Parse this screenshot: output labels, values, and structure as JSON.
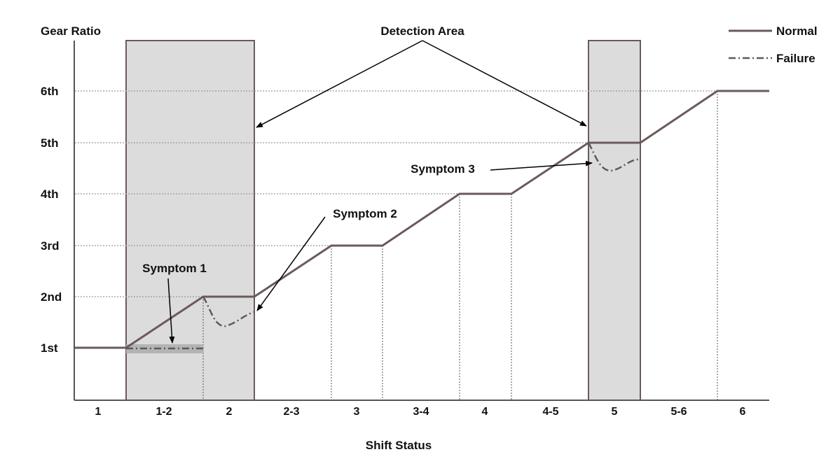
{
  "diagram": {
    "y_axis_title": "Gear Ratio",
    "x_axis_title": "Shift Status",
    "gear_levels": [
      "1st",
      "2nd",
      "3rd",
      "4th",
      "5th",
      "6th"
    ],
    "shift_statuses": [
      "1",
      "1-2",
      "2",
      "2-3",
      "3",
      "3-4",
      "4",
      "4-5",
      "5",
      "5-6",
      "6"
    ],
    "detection_area_label": "Detection Area",
    "symptom_1_label": "Symptom 1",
    "symptom_2_label": "Symptom 2",
    "symptom_3_label": "Symptom 3",
    "legend": {
      "normal_label": "Normal",
      "failure_label": "Failure"
    },
    "colors": {
      "normal_line": "#6b5a5a",
      "failure_line": "#5a5a5a",
      "detection_fill": "#dcdcdc",
      "detection_border": "#6b5a5a",
      "grid": "#999999",
      "axis": "#555555"
    }
  }
}
